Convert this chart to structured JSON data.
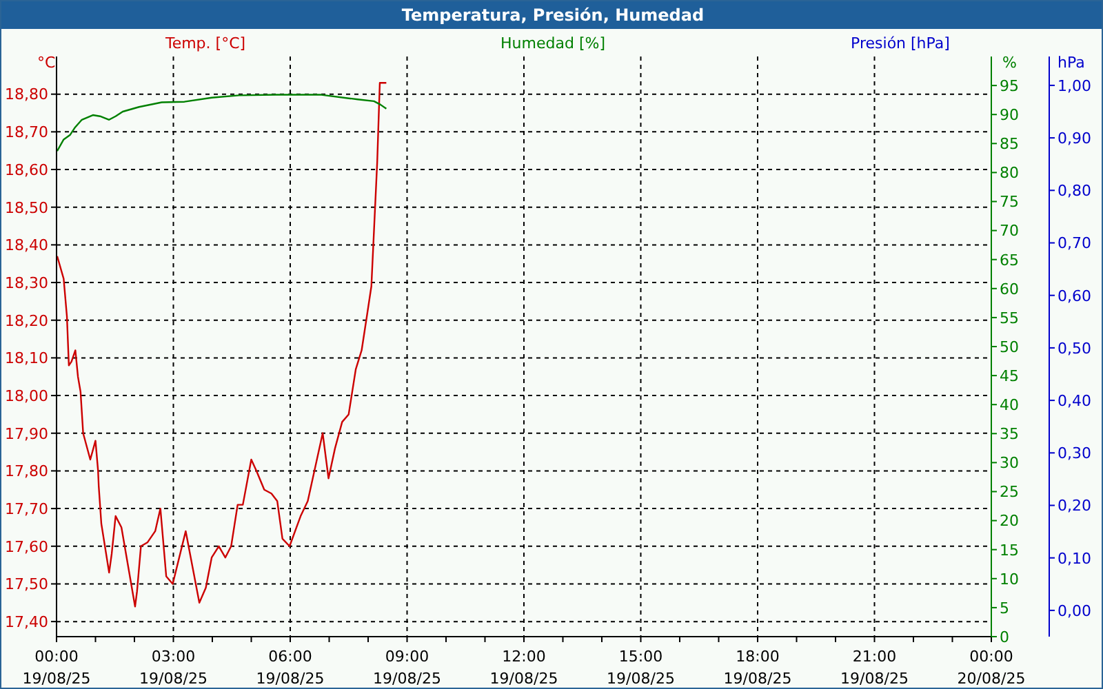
{
  "chart_data": {
    "type": "line",
    "title": "Temperatura, Presión, Humedad",
    "ylabel": "°C",
    "y2label": "%",
    "y3label": "hPa",
    "legend": "top",
    "grid": true,
    "marker": "none",
    "line_style": "solid",
    "xlim": [
      "--08-19T00:00",
      "--08-20T00:00"
    ],
    "xticks": [
      {
        "value": "--08-19T00:00",
        "label": "00:00\n19/08/25"
      },
      {
        "value": "--08-19T01:00",
        "label": null
      },
      {
        "value": "--08-19T02:00",
        "label": null
      },
      {
        "value": "--08-19T03:00",
        "label": "03:00\n19/08/25"
      },
      {
        "value": "--08-19T04:00",
        "label": null
      },
      {
        "value": "--08-19T05:00",
        "label": null
      },
      {
        "value": "--08-19T06:00",
        "label": "06:00\n19/08/25"
      },
      {
        "value": "--08-19T07:00",
        "label": null
      },
      {
        "value": "--08-19T08:00",
        "label": null
      },
      {
        "value": "--08-19T09:00",
        "label": "09:00\n19/08/25"
      },
      {
        "value": "--08-19T10:00",
        "label": null
      },
      {
        "value": "--08-19T11:00",
        "label": null
      },
      {
        "value": "--08-19T12:00",
        "label": "12:00\n19/08/25"
      },
      {
        "value": "--08-19T13:00",
        "label": null
      },
      {
        "value": "--08-19T14:00",
        "label": null
      },
      {
        "value": "--08-19T15:00",
        "label": "15:00\n19/08/25"
      },
      {
        "value": "--08-19T16:00",
        "label": null
      },
      {
        "value": "--08-19T17:00",
        "label": null
      },
      {
        "value": "--08-19T18:00",
        "label": "18:00\n19/08/25"
      },
      {
        "value": "--08-19T19:00",
        "label": null
      },
      {
        "value": "--08-19T20:00",
        "label": null
      },
      {
        "value": "--08-19T21:00",
        "label": "21:00\n19/08/25"
      },
      {
        "value": "--08-19T22:00",
        "label": null
      },
      {
        "value": "--08-19T23:00",
        "label": null
      },
      {
        "value": "--08-20T00:00",
        "label": "00:00\n20/08/25"
      }
    ],
    "ylim": [
      17.36,
      18.9
    ],
    "yticks": [
      {
        "value": 17.4,
        "label": "17,40"
      },
      {
        "value": 17.5,
        "label": "17,50"
      },
      {
        "value": 17.6,
        "label": "17,60"
      },
      {
        "value": 17.7,
        "label": "17,70"
      },
      {
        "value": 17.8,
        "label": "17,80"
      },
      {
        "value": 17.9,
        "label": "17,90"
      },
      {
        "value": 18.0,
        "label": "18,00"
      },
      {
        "value": 18.1,
        "label": "18,10"
      },
      {
        "value": 18.2,
        "label": "18,20"
      },
      {
        "value": 18.3,
        "label": "18,30"
      },
      {
        "value": 18.4,
        "label": "18,40"
      },
      {
        "value": 18.5,
        "label": "18,50"
      },
      {
        "value": 18.6,
        "label": "18,60"
      },
      {
        "value": 18.7,
        "label": "18,70"
      },
      {
        "value": 18.8,
        "label": "18,80"
      }
    ],
    "y2lim": [
      0,
      100
    ],
    "y2ticks": [
      0,
      5,
      10,
      15,
      20,
      25,
      30,
      35,
      40,
      45,
      50,
      55,
      60,
      65,
      70,
      75,
      80,
      85,
      90,
      95
    ],
    "y3lim": [
      -0.05,
      1.055
    ],
    "y3ticks": [
      {
        "value": 0,
        "label": "0,00"
      },
      {
        "value": 0.1,
        "label": "0,10"
      },
      {
        "value": 0.2,
        "label": "0,20"
      },
      {
        "value": 0.3,
        "label": "0,30"
      },
      {
        "value": 0.4,
        "label": "0,40"
      },
      {
        "value": 0.5,
        "label": "0,50"
      },
      {
        "value": 0.6,
        "label": "0,60"
      },
      {
        "value": 0.7,
        "label": "0,70"
      },
      {
        "value": 0.8,
        "label": "0,80"
      },
      {
        "value": 0.9,
        "label": "0,90"
      },
      {
        "value": 1.0,
        "label": "1,00"
      }
    ],
    "series": [
      {
        "name": "Temp. [°C]",
        "color": "#cc0000",
        "x": [
          "--08-19T00:01",
          "--08-19T00:11",
          "--08-19T00:16",
          "--08-19T00:19",
          "--08-19T00:23",
          "--08-19T00:29",
          "--08-19T00:33",
          "--08-19T00:37",
          "--08-19T00:41",
          "--08-19T00:52",
          "--08-19T01:00",
          "--08-19T01:04",
          "--08-19T01:05",
          "--08-19T01:09",
          "--08-19T01:21",
          "--08-19T01:25",
          "--08-19T01:31",
          "--08-19T01:40",
          "--08-19T02:01",
          "--08-19T02:04",
          "--08-19T02:10",
          "--08-19T02:20",
          "--08-19T02:32",
          "--08-19T02:40",
          "--08-19T02:49",
          "--08-19T02:59",
          "--08-19T03:19",
          "--08-19T03:40",
          "--08-19T03:50",
          "--08-19T03:59",
          "--08-19T04:10",
          "--08-19T04:20",
          "--08-19T04:29",
          "--08-19T04:39",
          "--08-19T04:47",
          "--08-19T05:00",
          "--08-19T05:08",
          "--08-19T05:20",
          "--08-19T05:31",
          "--08-19T05:40",
          "--08-19T05:48",
          "--08-19T05:59",
          "--08-19T06:16",
          "--08-19T06:27",
          "--08-19T06:50",
          "--08-19T06:59",
          "--08-19T07:09",
          "--08-19T07:20",
          "--08-19T07:30",
          "--08-19T07:41",
          "--08-19T07:50",
          "--08-19T07:58",
          "--08-19T08:05",
          "--08-19T08:14",
          "--08-19T08:18",
          "--08-19T08:28"
        ],
        "values": [
          18.37,
          18.31,
          18.21,
          18.08,
          18.09,
          18.12,
          18.05,
          18.01,
          17.9,
          17.83,
          17.88,
          17.8,
          17.76,
          17.66,
          17.53,
          17.58,
          17.68,
          17.65,
          17.44,
          17.48,
          17.6,
          17.61,
          17.64,
          17.7,
          17.52,
          17.5,
          17.64,
          17.45,
          17.49,
          17.57,
          17.6,
          17.57,
          17.6,
          17.71,
          17.71,
          17.83,
          17.8,
          17.75,
          17.74,
          17.72,
          17.62,
          17.6,
          17.68,
          17.72,
          17.9,
          17.78,
          17.86,
          17.93,
          17.95,
          18.07,
          18.12,
          18.21,
          18.29,
          18.62,
          18.83,
          18.83
        ]
      },
      {
        "name": "Humedad [%]",
        "color": "#008000",
        "axis": "y2",
        "x": [
          "--08-19T00:01",
          "--08-19T00:11",
          "--08-19T00:21",
          "--08-19T00:28",
          "--08-19T00:39",
          "--08-19T00:56",
          "--08-19T01:07",
          "--08-19T01:21",
          "--08-19T01:31",
          "--08-19T01:42",
          "--08-19T02:07",
          "--08-19T02:42",
          "--08-19T03:17",
          "--08-19T03:59",
          "--08-19T04:41",
          "--08-19T05:38",
          "--08-19T06:48",
          "--08-19T07:44",
          "--08-19T08:09",
          "--08-19T08:19",
          "--08-19T08:28"
        ],
        "values": [
          83.7,
          85.7,
          86.5,
          87.7,
          89.1,
          89.9,
          89.7,
          89.1,
          89.7,
          90.5,
          91.3,
          92.1,
          92.2,
          92.9,
          93.3,
          93.4,
          93.4,
          92.6,
          92.3,
          91.7,
          91.0
        ]
      },
      {
        "name": "Presión [hPa]",
        "color": "#0000cc",
        "axis": "y3"
      }
    ]
  }
}
